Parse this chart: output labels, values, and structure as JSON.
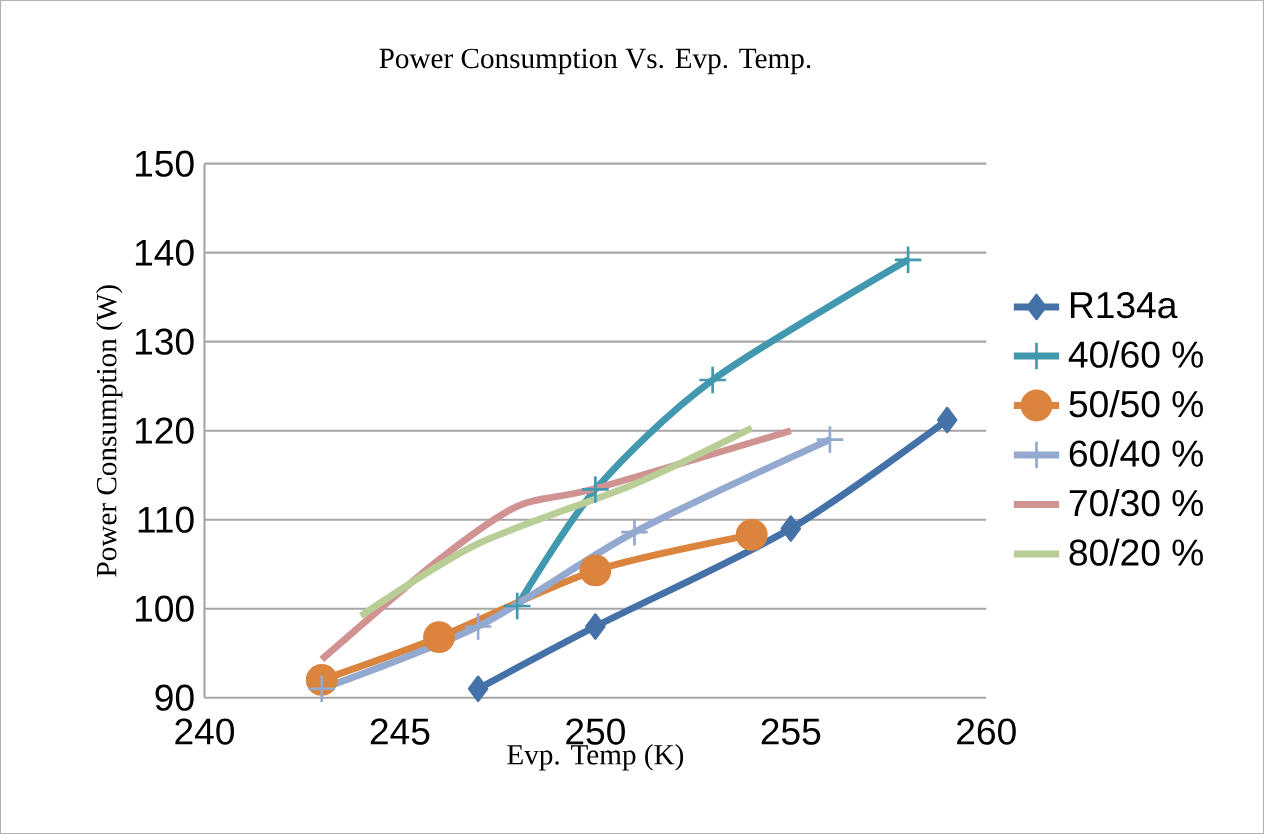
{
  "chart_data": {
    "type": "line",
    "title": "Power Consumption Vs. Evp. Temp.",
    "xlabel": "Evp. Temp (K)",
    "ylabel": "Power Consumption (W)",
    "xlim": [
      240,
      260
    ],
    "xticks": [
      240,
      245,
      250,
      255,
      260
    ],
    "ylim": [
      90,
      150
    ],
    "yticks": [
      90,
      100,
      110,
      120,
      130,
      140,
      150
    ],
    "grid": "y",
    "legend": "right",
    "series": [
      {
        "name": "R134a",
        "color": "#4472a8",
        "marker": "diamond",
        "x": [
          247,
          250,
          255,
          259
        ],
        "values": [
          91,
          98,
          109,
          121.2
        ]
      },
      {
        "name": "40/60 %",
        "color": "#4198af",
        "marker": "cross",
        "x": [
          248,
          250,
          253,
          258
        ],
        "values": [
          100.3,
          113.4,
          125.7,
          139.2
        ]
      },
      {
        "name": "50/50 %",
        "color": "#db843d",
        "marker": "circle",
        "x": [
          243,
          246,
          250,
          254
        ],
        "values": [
          92,
          96.8,
          104.3,
          108.3
        ]
      },
      {
        "name": "60/40 %",
        "color": "#93a9d0",
        "marker": "cross",
        "x": [
          243,
          247,
          251,
          256
        ],
        "values": [
          91,
          98,
          108.6,
          119
        ]
      },
      {
        "name": "70/30 %",
        "color": "#d09392",
        "marker": "none",
        "x": [
          243,
          246,
          248,
          250,
          255
        ],
        "values": [
          94.3,
          105.5,
          111.5,
          113.5,
          120
        ]
      },
      {
        "name": "80/20 %",
        "color": "#b9cd96",
        "marker": "none",
        "x": [
          244,
          247,
          251,
          254
        ],
        "values": [
          99.2,
          107.3,
          114,
          120.3
        ]
      }
    ]
  }
}
